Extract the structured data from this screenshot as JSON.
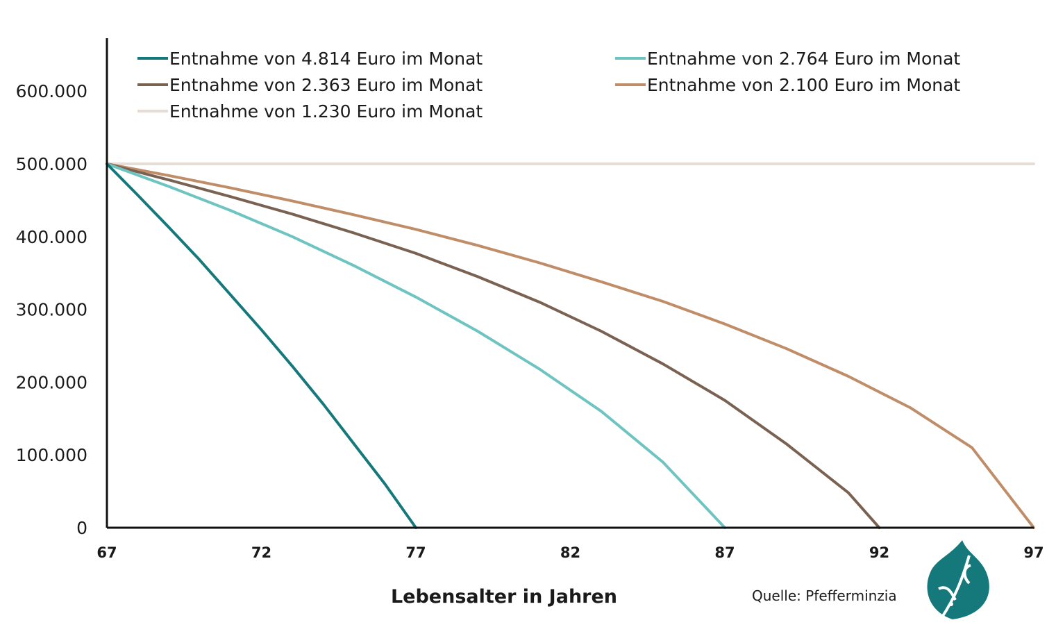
{
  "chart_data": {
    "type": "line",
    "xlabel": "Lebensalter in Jahren",
    "ylabel": "",
    "xlim": [
      67,
      97
    ],
    "ylim": [
      0,
      600000
    ],
    "x_ticks": [
      "67",
      "72",
      "77",
      "82",
      "87",
      "92",
      "97"
    ],
    "y_ticks": [
      "0",
      "100.000",
      "200.000",
      "300.000",
      "400.000",
      "500.000",
      "600.000"
    ],
    "grid": false,
    "legend_position": "top",
    "series": [
      {
        "name": "Entnahme von 4.814 Euro im Monat",
        "color": "#15787a",
        "x": [
          67,
          68,
          69,
          70,
          71,
          72,
          73,
          74,
          75,
          76,
          77
        ],
        "y": [
          500000,
          457000,
          413000,
          368000,
          320000,
          272000,
          222000,
          170000,
          115000,
          60000,
          0
        ]
      },
      {
        "name": "Entnahme von 2.764 Euro im Monat",
        "color": "#6ec4c1",
        "x": [
          67,
          69,
          71,
          73,
          75,
          77,
          79,
          81,
          83,
          85,
          87
        ],
        "y": [
          500000,
          469000,
          436000,
          400000,
          360000,
          317000,
          270000,
          218000,
          160000,
          90000,
          0
        ]
      },
      {
        "name": "Entnahme von 2.363 Euro im Monat",
        "color": "#7a6253",
        "x": [
          67,
          69,
          71,
          73,
          75,
          77,
          79,
          81,
          83,
          85,
          87,
          89,
          91,
          92
        ],
        "y": [
          500000,
          478000,
          455000,
          431000,
          405000,
          377000,
          345000,
          310000,
          270000,
          225000,
          175000,
          115000,
          48000,
          0
        ]
      },
      {
        "name": "Entnahme von 2.100 Euro im Monat",
        "color": "#c08d69",
        "x": [
          67,
          69,
          71,
          73,
          75,
          77,
          79,
          81,
          83,
          85,
          87,
          89,
          91,
          93,
          95,
          97
        ],
        "y": [
          500000,
          484000,
          467000,
          449000,
          430000,
          410000,
          388000,
          364000,
          338000,
          311000,
          280000,
          246000,
          208000,
          165000,
          110000,
          0
        ]
      },
      {
        "name": "Entnahme von 1.230 Euro im Monat",
        "color": "#e8ddd6",
        "x": [
          67,
          72,
          77,
          82,
          87,
          92,
          97
        ],
        "y": [
          500000,
          500000,
          500000,
          500000,
          500000,
          500000,
          500000
        ]
      }
    ]
  },
  "source_text": "Quelle: Pfefferminzia",
  "logo_icon": "leaf-logo-icon",
  "colors": {
    "axis": "#111111",
    "logo": "#15787a"
  }
}
